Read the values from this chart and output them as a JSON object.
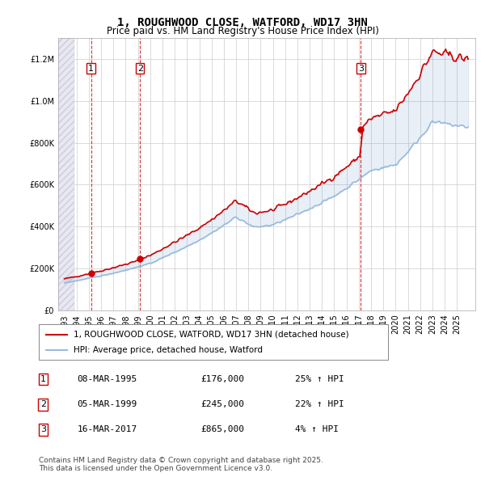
{
  "title": "1, ROUGHWOOD CLOSE, WATFORD, WD17 3HN",
  "subtitle": "Price paid vs. HM Land Registry's House Price Index (HPI)",
  "sale_dates": [
    "1995-03-08",
    "1999-03-05",
    "2017-03-16"
  ],
  "sale_prices": [
    176000,
    245000,
    865000
  ],
  "sale_labels": [
    "1",
    "2",
    "3"
  ],
  "legend_property": "1, ROUGHWOOD CLOSE, WATFORD, WD17 3HN (detached house)",
  "legend_hpi": "HPI: Average price, detached house, Watford",
  "table_rows": [
    {
      "label": "1",
      "date": "08-MAR-1995",
      "price": "£176,000",
      "hpi": "25% ↑ HPI"
    },
    {
      "label": "2",
      "date": "05-MAR-1999",
      "price": "£245,000",
      "hpi": "22% ↑ HPI"
    },
    {
      "label": "3",
      "date": "16-MAR-2017",
      "price": "£865,000",
      "hpi": "4% ↑ HPI"
    }
  ],
  "footer": "Contains HM Land Registry data © Crown copyright and database right 2025.\nThis data is licensed under the Open Government Licence v3.0.",
  "property_line_color": "#cc0000",
  "hpi_line_color": "#99bbdd",
  "sale_marker_color": "#cc0000",
  "background_hatch_color": "#ddddee",
  "ylim": [
    0,
    1300000
  ],
  "yticks": [
    0,
    200000,
    400000,
    600000,
    800000,
    1000000,
    1200000
  ],
  "ylabel_format": "£{0}",
  "x_start_year": 1993,
  "x_end_year": 2026
}
